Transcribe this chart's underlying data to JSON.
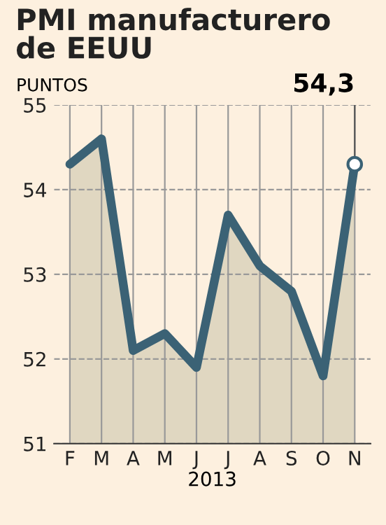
{
  "chart_data": {
    "type": "area",
    "title": "PMI manufacturero\nde EEUU",
    "ylabel": "PUNTOS",
    "xlabel": "2013",
    "categories": [
      "F",
      "M",
      "A",
      "M",
      "J",
      "J",
      "A",
      "S",
      "O",
      "N"
    ],
    "series": [
      {
        "color": "#3b6275",
        "values": [
          54.3,
          54.6,
          52.1,
          52.3,
          51.9,
          53.7,
          53.1,
          52.8,
          51.8,
          54.3
        ]
      }
    ],
    "ylim": [
      51,
      55
    ],
    "yticks": [
      51,
      52,
      53,
      54,
      55
    ],
    "grid": true,
    "line_style": "solid",
    "annotations": [
      {
        "text": "54,3",
        "x": "N",
        "y": 54.3
      }
    ]
  }
}
